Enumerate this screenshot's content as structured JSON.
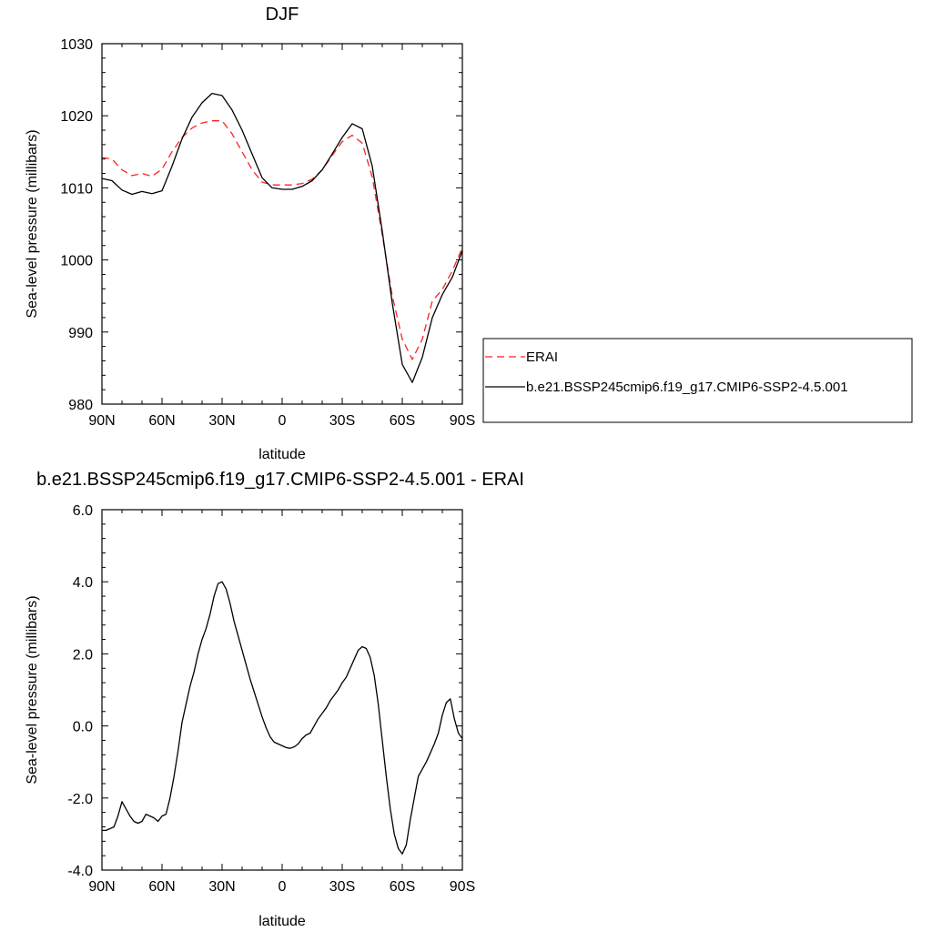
{
  "legend": {
    "placement": "right",
    "entries": [
      {
        "label": "ERAI",
        "color": "#ff2222",
        "style": "dashed"
      },
      {
        "label": "b.e21.BSSP245cmip6.f19_g17.CMIP6-SSP2-4.5.001",
        "color": "#000000",
        "style": "solid"
      }
    ]
  },
  "chart_data": [
    {
      "type": "line",
      "title": "DJF",
      "xlabel": "latitude",
      "ylabel": "Sea-level pressure (millibars)",
      "xlim": [
        90,
        -90
      ],
      "ylim": [
        980,
        1030
      ],
      "grid": false,
      "x_ticks": [
        90,
        60,
        30,
        0,
        -30,
        -60,
        -90
      ],
      "x_tick_labels": [
        "90N",
        "60N",
        "30N",
        "0",
        "30S",
        "60S",
        "90S"
      ],
      "y_ticks": [
        980,
        990,
        1000,
        1010,
        1020,
        1030
      ],
      "y_tick_labels": [
        "980",
        "990",
        "1000",
        "1010",
        "1020",
        "1030"
      ],
      "series": [
        {
          "name": "ERAI",
          "color": "#ff2222",
          "dash": "8,5",
          "x": [
            90,
            85,
            80,
            75,
            70,
            65,
            60,
            55,
            50,
            45,
            40,
            35,
            30,
            25,
            20,
            15,
            10,
            5,
            0,
            -5,
            -10,
            -15,
            -20,
            -25,
            -30,
            -35,
            -40,
            -45,
            -50,
            -55,
            -60,
            -65,
            -70,
            -75,
            -80,
            -85,
            -90
          ],
          "values": [
            1014.2,
            1014.0,
            1012.5,
            1011.7,
            1012.0,
            1011.6,
            1012.6,
            1015.0,
            1017.0,
            1018.3,
            1019.0,
            1019.3,
            1019.3,
            1017.5,
            1015.0,
            1012.5,
            1010.8,
            1010.4,
            1010.4,
            1010.4,
            1010.6,
            1011.2,
            1012.5,
            1014.5,
            1016.4,
            1017.3,
            1016.2,
            1011.5,
            1003.5,
            995.0,
            989.0,
            986.2,
            989.0,
            994.3,
            995.9,
            998.5,
            1001.7
          ]
        },
        {
          "name": "b.e21.BSSP245cmip6.f19_g17.CMIP6-SSP2-4.5.001",
          "color": "#000000",
          "dash": "",
          "x": [
            90,
            85,
            80,
            75,
            70,
            65,
            60,
            55,
            50,
            45,
            40,
            35,
            30,
            25,
            20,
            15,
            10,
            5,
            0,
            -5,
            -10,
            -15,
            -20,
            -25,
            -30,
            -35,
            -40,
            -45,
            -50,
            -55,
            -60,
            -65,
            -70,
            -75,
            -80,
            -85,
            -90
          ],
          "values": [
            1011.3,
            1011.0,
            1009.7,
            1009.1,
            1009.5,
            1009.2,
            1009.6,
            1013.0,
            1016.8,
            1019.8,
            1021.8,
            1023.1,
            1022.8,
            1020.8,
            1018.0,
            1014.7,
            1011.4,
            1010.0,
            1009.8,
            1009.8,
            1010.2,
            1011.0,
            1012.5,
            1014.7,
            1017.0,
            1018.9,
            1018.2,
            1013.0,
            1004.0,
            994.0,
            985.5,
            983.0,
            986.5,
            992.0,
            995.2,
            997.6,
            1001.3
          ]
        }
      ]
    },
    {
      "type": "line",
      "title": "b.e21.BSSP245cmip6.f19_g17.CMIP6-SSP2-4.5.001 - ERAI",
      "xlabel": "latitude",
      "ylabel": "Sea-level pressure (millibars)",
      "xlim": [
        90,
        -90
      ],
      "ylim": [
        -4,
        6
      ],
      "grid": false,
      "x_ticks": [
        90,
        60,
        30,
        0,
        -30,
        -60,
        -90
      ],
      "x_tick_labels": [
        "90N",
        "60N",
        "30N",
        "0",
        "30S",
        "60S",
        "90S"
      ],
      "y_ticks": [
        -4,
        -2,
        0,
        2,
        4,
        6
      ],
      "y_tick_labels": [
        "-4.0",
        "-2.0",
        "0.0",
        "2.0",
        "4.0",
        "6.0"
      ],
      "series": [
        {
          "name": "",
          "color": "#000000",
          "dash": "",
          "x": [
            90,
            88,
            86,
            84,
            82,
            80,
            78,
            76,
            74,
            72,
            70,
            68,
            66,
            64,
            62,
            60,
            58,
            56,
            54,
            52,
            50,
            48,
            46,
            44,
            42,
            40,
            38,
            36,
            34,
            32,
            30,
            28,
            26,
            24,
            22,
            20,
            18,
            16,
            14,
            12,
            10,
            8,
            6,
            4,
            2,
            0,
            -2,
            -4,
            -6,
            -8,
            -10,
            -12,
            -14,
            -16,
            -18,
            -20,
            -22,
            -24,
            -26,
            -28,
            -30,
            -32,
            -34,
            -36,
            -38,
            -40,
            -42,
            -44,
            -46,
            -48,
            -50,
            -52,
            -54,
            -56,
            -58,
            -60,
            -62,
            -64,
            -66,
            -68,
            -70,
            -72,
            -74,
            -76,
            -78,
            -80,
            -82,
            -84,
            -86,
            -88,
            -90
          ],
          "values": [
            -2.9,
            -2.9,
            -2.85,
            -2.8,
            -2.5,
            -2.1,
            -2.3,
            -2.5,
            -2.65,
            -2.7,
            -2.65,
            -2.45,
            -2.5,
            -2.55,
            -2.65,
            -2.5,
            -2.45,
            -2.0,
            -1.4,
            -0.7,
            0.1,
            0.6,
            1.1,
            1.5,
            2.0,
            2.4,
            2.7,
            3.1,
            3.6,
            3.95,
            4.0,
            3.8,
            3.4,
            2.9,
            2.5,
            2.1,
            1.7,
            1.3,
            0.95,
            0.6,
            0.25,
            -0.05,
            -0.3,
            -0.45,
            -0.5,
            -0.55,
            -0.6,
            -0.62,
            -0.58,
            -0.5,
            -0.35,
            -0.25,
            -0.2,
            0.0,
            0.2,
            0.35,
            0.5,
            0.7,
            0.85,
            1.0,
            1.2,
            1.35,
            1.6,
            1.85,
            2.1,
            2.2,
            2.15,
            1.9,
            1.4,
            0.6,
            -0.4,
            -1.4,
            -2.3,
            -3.0,
            -3.4,
            -3.55,
            -3.3,
            -2.6,
            -2.0,
            -1.4,
            -1.2,
            -1.0,
            -0.75,
            -0.5,
            -0.2,
            0.3,
            0.65,
            0.75,
            0.2,
            -0.2,
            -0.35
          ]
        }
      ]
    }
  ]
}
